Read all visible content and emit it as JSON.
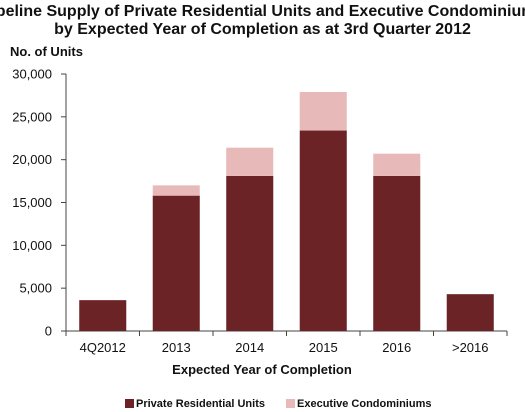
{
  "chart_data": {
    "type": "bar",
    "stacked": true,
    "title_lines": [
      "Pipeline Supply  of Private Residential Units and Executive Condominiums",
      "by Expected Year of Completion as at 3rd Quarter 2012"
    ],
    "ylabel": "No. of Units",
    "xlabel": "Expected Year of Completion",
    "categories": [
      "4Q2012",
      "2013",
      "2014",
      "2015",
      "2016",
      ">2016"
    ],
    "series": [
      {
        "name": "Private Residential Units",
        "color": "#6b2326",
        "values": [
          3600,
          15800,
          18100,
          23400,
          18100,
          4300
        ]
      },
      {
        "name": "Executive Condominiums",
        "color": "#e8b9b9",
        "values": [
          0,
          1200,
          3300,
          4500,
          2600,
          0
        ]
      }
    ],
    "ylim": [
      0,
      30000
    ],
    "yticks": [
      0,
      5000,
      10000,
      15000,
      20000,
      25000,
      30000
    ],
    "ytick_labels": [
      "0",
      "5,000",
      "10,000",
      "15,000",
      "20,000",
      "25,000",
      "30,000"
    ],
    "grid": false,
    "legend_position": "bottom"
  }
}
